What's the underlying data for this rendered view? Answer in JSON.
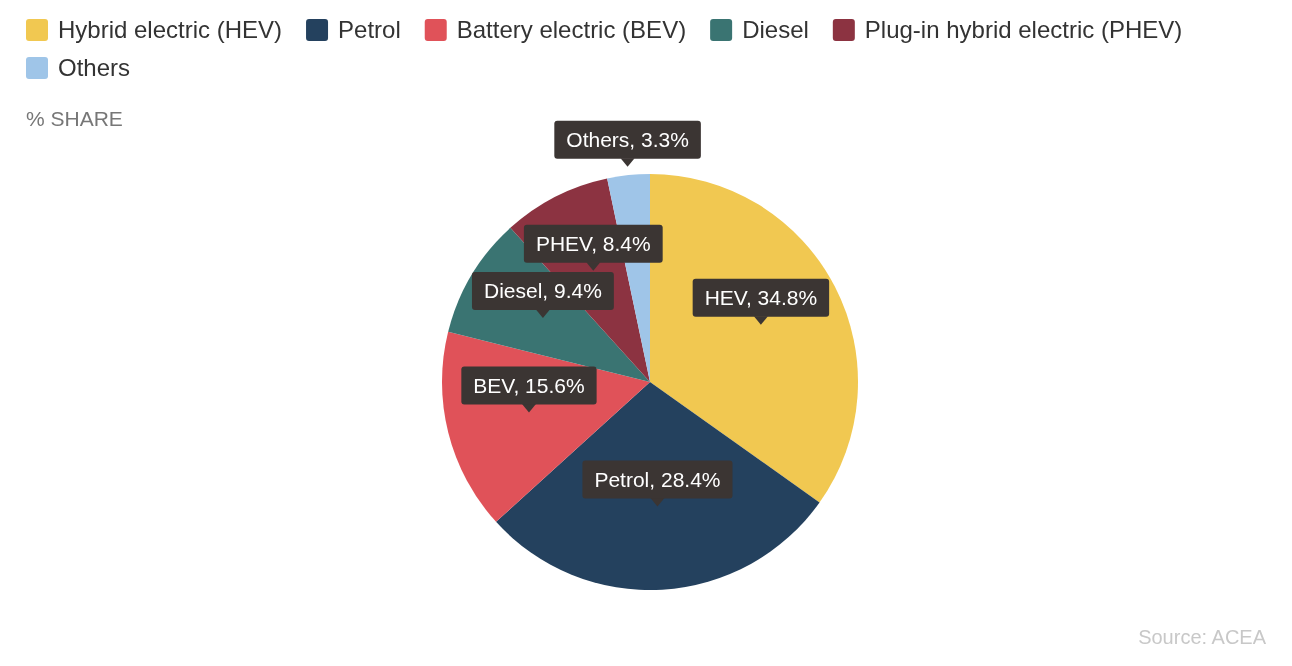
{
  "chart_data": {
    "type": "pie",
    "subtitle": "% SHARE",
    "categories": [
      "Hybrid electric (HEV)",
      "Petrol",
      "Battery electric (BEV)",
      "Diesel",
      "Plug-in hybrid electric (PHEV)",
      "Others"
    ],
    "values": [
      34.8,
      28.4,
      15.6,
      9.4,
      8.4,
      3.3
    ],
    "colors": [
      "#f1c851",
      "#24415e",
      "#e05259",
      "#3a7472",
      "#8c3341",
      "#9fc5e8"
    ],
    "value_labels": [
      "HEV, 34.8%",
      "Petrol, 28.4%",
      "BEV, 15.6%",
      "Diesel, 9.4%",
      "PHEV, 8.4%",
      "Others, 3.3%"
    ],
    "legend": "top",
    "annotations": [
      "Source:  ACEA"
    ]
  }
}
